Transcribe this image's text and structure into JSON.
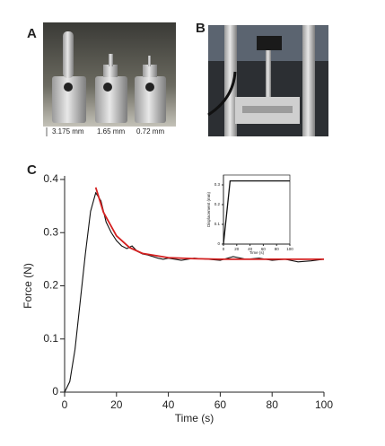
{
  "panels": {
    "a": {
      "label": "A",
      "annotations": [
        "3.175 mm",
        "1.65 mm",
        "0.72 mm"
      ]
    },
    "b": {
      "label": "B"
    },
    "c": {
      "label": "C"
    }
  },
  "chart_data": [
    {
      "type": "line",
      "xlabel": "Time (s)",
      "ylabel": "Force (N)",
      "xlim": [
        0,
        100
      ],
      "ylim": [
        0,
        0.4
      ],
      "xticks": [
        0,
        20,
        40,
        60,
        80,
        100
      ],
      "yticks": [
        0,
        0.1,
        0.2,
        0.3,
        0.4
      ],
      "series": [
        {
          "color": "#111111",
          "x": [
            0,
            2,
            4,
            6,
            8,
            10,
            12,
            14,
            16,
            18,
            20,
            22,
            24,
            26,
            28,
            30,
            32,
            34,
            36,
            38,
            40,
            45,
            50,
            55,
            60,
            65,
            70,
            75,
            80,
            85,
            90,
            95,
            100
          ],
          "values": [
            0,
            0.02,
            0.08,
            0.17,
            0.26,
            0.34,
            0.375,
            0.36,
            0.32,
            0.3,
            0.285,
            0.275,
            0.27,
            0.275,
            0.265,
            0.26,
            0.258,
            0.255,
            0.252,
            0.25,
            0.252,
            0.248,
            0.252,
            0.25,
            0.248,
            0.255,
            0.25,
            0.252,
            0.248,
            0.25,
            0.245,
            0.247,
            0.25
          ]
        },
        {
          "color": "#d42020",
          "x": [
            12,
            15,
            20,
            25,
            30,
            40,
            50,
            60,
            80,
            100
          ],
          "values": [
            0.385,
            0.338,
            0.294,
            0.272,
            0.261,
            0.253,
            0.251,
            0.25,
            0.25,
            0.25
          ]
        }
      ]
    },
    {
      "type": "line",
      "xlabel": "Time (s)",
      "ylabel": "Displacement (mm)",
      "xlim": [
        0,
        100
      ],
      "ylim": [
        0,
        0.35
      ],
      "xticks": [
        0,
        20,
        40,
        60,
        80,
        100
      ],
      "yticks": [
        0,
        0.1,
        0.2,
        0.3
      ],
      "series": [
        {
          "color": "#111111",
          "x": [
            0,
            10,
            100
          ],
          "values": [
            0,
            0.32,
            0.32
          ]
        }
      ]
    }
  ]
}
